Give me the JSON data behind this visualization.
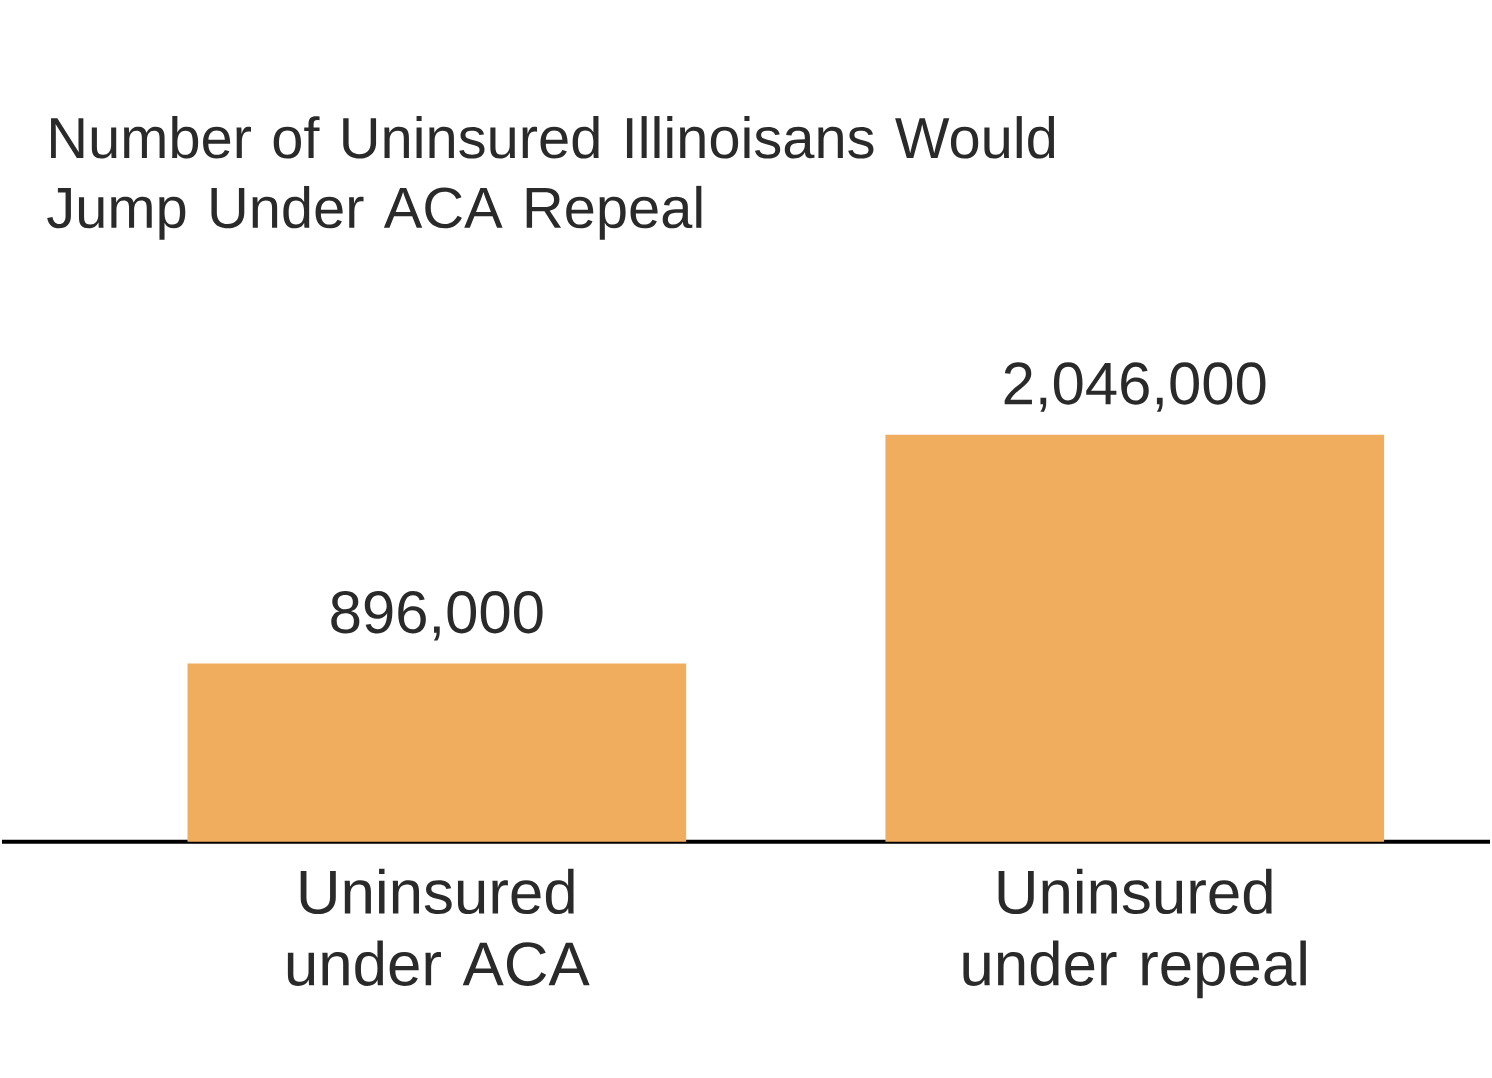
{
  "chart_data": {
    "type": "bar",
    "title": "Number of Uninsured Illinoisans Would Jump Under ACA Repeal",
    "categories": [
      "Uninsured under ACA",
      "Uninsured under repeal"
    ],
    "values": [
      896000,
      2046000
    ],
    "value_labels": [
      "896,000",
      "2,046,000"
    ],
    "color": "#f0ad5e"
  }
}
